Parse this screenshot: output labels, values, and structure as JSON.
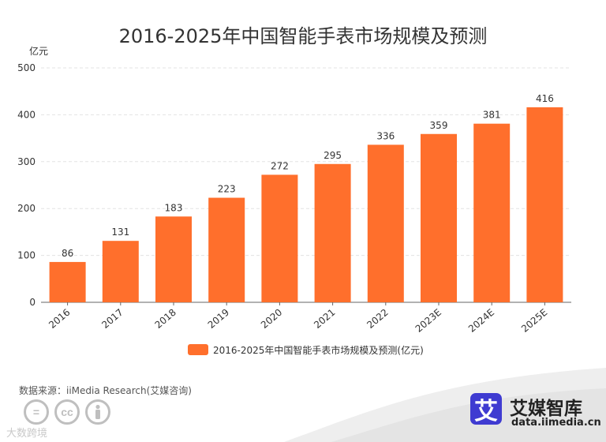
{
  "chart_data": {
    "type": "bar",
    "title": "2016-2025年中国智能手表市场规模及预测",
    "ylabel": "亿元",
    "xlabel": "",
    "ylim": [
      0,
      500
    ],
    "yticks": [
      0,
      100,
      200,
      300,
      400,
      500
    ],
    "categories": [
      "2016",
      "2017",
      "2018",
      "2019",
      "2020",
      "2021",
      "2022",
      "2023E",
      "2024E",
      "2025E"
    ],
    "series": [
      {
        "name": "2016-2025年中国智能手表市场规模及预测(亿元)",
        "values": [
          86,
          131,
          183,
          223,
          272,
          295,
          336,
          359,
          381,
          416
        ],
        "color": "#ff6f2c"
      }
    ],
    "grid": true,
    "legend": "bottom-center"
  },
  "source": "数据来源：iiMedia Research(艾媒咨询)",
  "watermark": "大数跨境",
  "logo": {
    "mark": "艾",
    "name": "艾媒智库",
    "url": "data.iimedia.cn",
    "color": "#3f3bd1"
  },
  "cc_icons": [
    "=",
    "cc",
    "person-icon"
  ]
}
